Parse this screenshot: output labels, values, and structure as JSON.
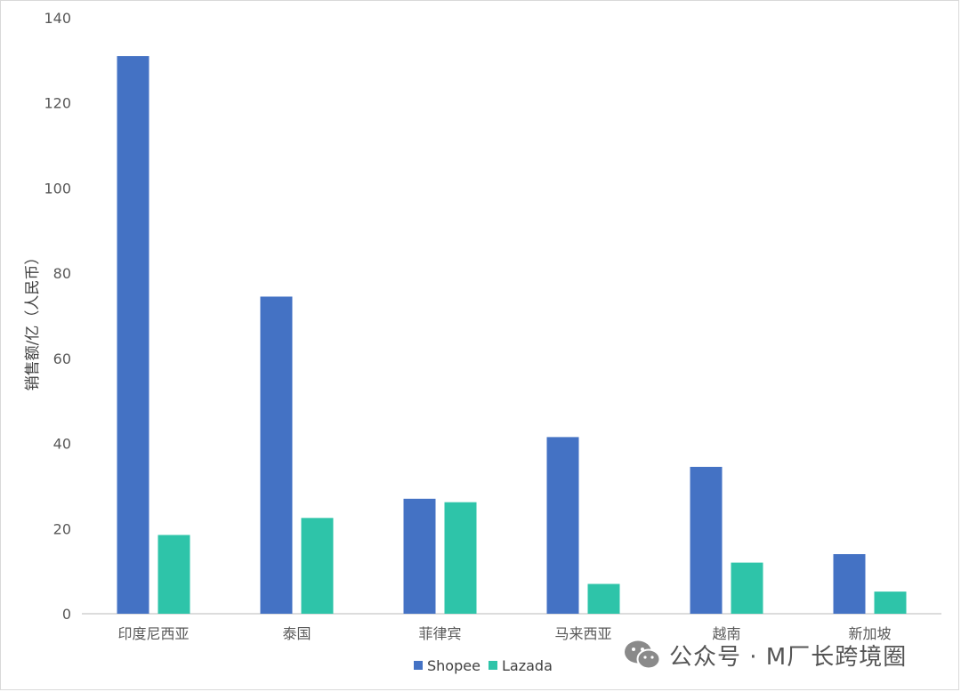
{
  "chart_data": {
    "type": "bar",
    "categories": [
      "印度尼西亚",
      "泰国",
      "菲律宾",
      "马来西亚",
      "越南",
      "新加坡"
    ],
    "series": [
      {
        "name": "Shopee",
        "values": [
          131,
          74.5,
          27,
          41.5,
          34.5,
          14
        ],
        "color": "#4472C4"
      },
      {
        "name": "Lazada",
        "values": [
          18.5,
          22.5,
          26.2,
          7,
          12,
          5.2
        ],
        "color": "#2EC4A9"
      }
    ],
    "title": "",
    "xlabel": "",
    "ylabel": "销售额/亿（人民币）",
    "ylim": [
      0,
      140
    ],
    "yticks": [
      0,
      20,
      40,
      60,
      80,
      100,
      120,
      140
    ],
    "grid": false,
    "legend_position": "bottom"
  },
  "watermark": {
    "text": "公众号 · M厂长跨境圈",
    "icon": "wechat-icon"
  }
}
